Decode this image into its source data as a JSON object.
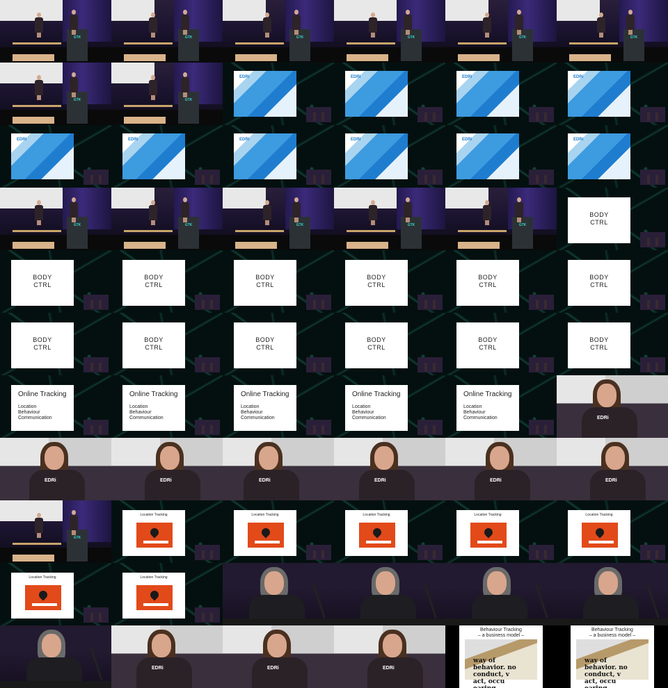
{
  "grid": {
    "columns": 6,
    "rows": 11
  },
  "podium_logo": "GTK",
  "edri_badge": "EDRi",
  "shirt_logo": "EDRi",
  "slides": {
    "body_ctrl": "BODY\nCTRL",
    "online_tracking": {
      "title": "Online Tracking",
      "items": "Location\nBehaviour\nCommunication"
    },
    "location_tracking": "Location Tracking",
    "behaviour_tracking": {
      "title": "Behaviour Tracking\n– a business model –",
      "words": "way of\nbehavior. no\nconduct, v\nact, occu\nearing."
    }
  },
  "cells": [
    "stage",
    "stage",
    "stage",
    "stage",
    "stage",
    "stage",
    "stage",
    "stage",
    "map",
    "map",
    "map",
    "map",
    "map",
    "map",
    "map",
    "map",
    "map",
    "map",
    "stage",
    "stage",
    "stage",
    "stage",
    "stage",
    "body",
    "body",
    "body",
    "body",
    "body",
    "body",
    "body",
    "body",
    "body",
    "body",
    "body",
    "body",
    "body",
    "online",
    "online",
    "online",
    "online",
    "online",
    "close-woman",
    "close-woman",
    "close-woman",
    "close-woman",
    "close-woman",
    "close-woman",
    "close-woman",
    "stage",
    "location",
    "location",
    "location",
    "location",
    "location",
    "location",
    "location",
    "close-man",
    "close-man",
    "close-man",
    "close-man",
    "close-man",
    "close-woman",
    "close-woman",
    "close-woman",
    "behav",
    "behav"
  ]
}
